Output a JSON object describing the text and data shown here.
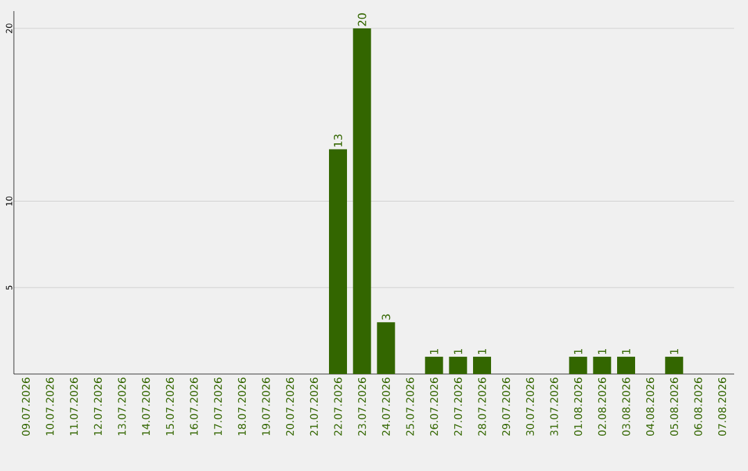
{
  "chart_data": {
    "type": "bar",
    "categories": [
      "09.07.2026",
      "10.07.2026",
      "11.07.2026",
      "12.07.2026",
      "13.07.2026",
      "14.07.2026",
      "15.07.2026",
      "16.07.2026",
      "17.07.2026",
      "18.07.2026",
      "19.07.2026",
      "20.07.2026",
      "21.07.2026",
      "22.07.2026",
      "23.07.2026",
      "24.07.2026",
      "25.07.2026",
      "26.07.2026",
      "27.07.2026",
      "28.07.2026",
      "29.07.2026",
      "30.07.2026",
      "31.07.2026",
      "01.08.2026",
      "02.08.2026",
      "03.08.2026",
      "04.08.2026",
      "05.08.2026",
      "06.08.2026",
      "07.08.2026"
    ],
    "values": [
      0,
      0,
      0,
      0,
      0,
      0,
      0,
      0,
      0,
      0,
      0,
      0,
      0,
      13,
      20,
      3,
      0,
      1,
      1,
      1,
      0,
      0,
      0,
      1,
      1,
      1,
      0,
      1,
      0,
      0
    ],
    "value_labels": [
      null,
      null,
      null,
      null,
      null,
      null,
      null,
      null,
      null,
      null,
      null,
      null,
      null,
      "13",
      "20",
      "3",
      null,
      "1",
      "1",
      "1",
      null,
      null,
      null,
      "1",
      "1",
      "1",
      null,
      "1",
      null,
      null
    ],
    "color": "#336600",
    "ylim": [
      0,
      21
    ],
    "yticks": [
      5,
      10,
      20
    ],
    "grid": "y"
  }
}
